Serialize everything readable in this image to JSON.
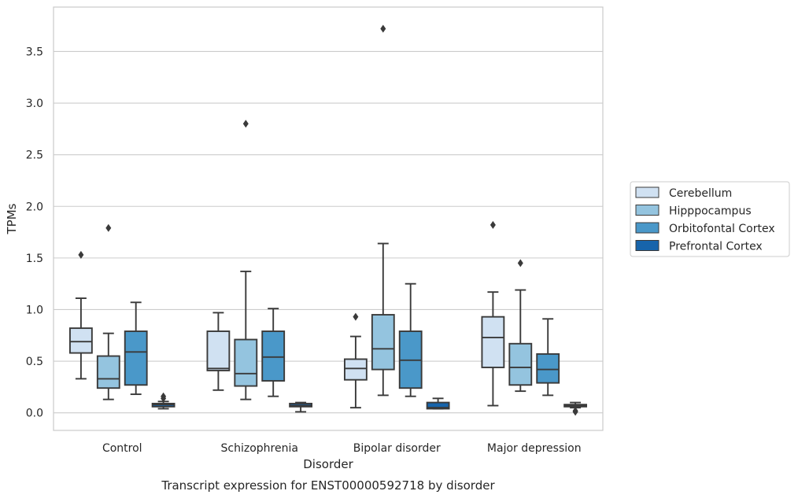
{
  "colors": {
    "Cerebellum": "#d0e1f2",
    "Hipppocampus": "#94c4df",
    "Orbitofontal Cortex": "#4a98c9",
    "Prefrontal Cortex": "#1764ab",
    "edge": "#3a3a3a",
    "grid": "#cccccc",
    "frame": "#cccccc"
  },
  "chart_data": {
    "type": "boxplot",
    "title": "",
    "caption": "Transcript expression for ENST00000592718 by disorder",
    "xlabel": "Disorder",
    "ylabel": "TPMs",
    "ylim": [
      -0.17,
      3.93
    ],
    "yticks": [
      "0.0",
      "0.5",
      "1.0",
      "1.5",
      "2.0",
      "2.5",
      "3.0",
      "3.5"
    ],
    "grid": true,
    "legend_placement": "center-right-outside",
    "categories": [
      "Control",
      "Schizophrenia",
      "Bipolar disorder",
      "Major depression"
    ],
    "series": [
      {
        "name": "Cerebellum",
        "boxes": [
          {
            "whislo": 0.33,
            "q1": 0.58,
            "med": 0.69,
            "q3": 0.82,
            "whishi": 1.11,
            "fliers": [
              1.53
            ]
          },
          {
            "whislo": 0.22,
            "q1": 0.41,
            "med": 0.43,
            "q3": 0.79,
            "whishi": 0.97,
            "fliers": []
          },
          {
            "whislo": 0.05,
            "q1": 0.32,
            "med": 0.43,
            "q3": 0.52,
            "whishi": 0.74,
            "fliers": [
              0.93
            ]
          },
          {
            "whislo": 0.07,
            "q1": 0.44,
            "med": 0.73,
            "q3": 0.93,
            "whishi": 1.17,
            "fliers": [
              1.82
            ]
          }
        ]
      },
      {
        "name": "Hipppocampus",
        "boxes": [
          {
            "whislo": 0.13,
            "q1": 0.24,
            "med": 0.33,
            "q3": 0.55,
            "whishi": 0.77,
            "fliers": [
              1.79
            ]
          },
          {
            "whislo": 0.13,
            "q1": 0.26,
            "med": 0.38,
            "q3": 0.71,
            "whishi": 1.37,
            "fliers": [
              2.8
            ]
          },
          {
            "whislo": 0.17,
            "q1": 0.42,
            "med": 0.62,
            "q3": 0.95,
            "whishi": 1.64,
            "fliers": [
              3.72
            ]
          },
          {
            "whislo": 0.21,
            "q1": 0.27,
            "med": 0.44,
            "q3": 0.67,
            "whishi": 1.19,
            "fliers": [
              1.45
            ]
          }
        ]
      },
      {
        "name": "Orbitofontal Cortex",
        "boxes": [
          {
            "whislo": 0.18,
            "q1": 0.27,
            "med": 0.59,
            "q3": 0.79,
            "whishi": 1.07,
            "fliers": []
          },
          {
            "whislo": 0.16,
            "q1": 0.31,
            "med": 0.54,
            "q3": 0.79,
            "whishi": 1.01,
            "fliers": []
          },
          {
            "whislo": 0.16,
            "q1": 0.24,
            "med": 0.51,
            "q3": 0.79,
            "whishi": 1.25,
            "fliers": []
          },
          {
            "whislo": 0.17,
            "q1": 0.29,
            "med": 0.42,
            "q3": 0.57,
            "whishi": 0.91,
            "fliers": []
          }
        ]
      },
      {
        "name": "Prefrontal Cortex",
        "boxes": [
          {
            "whislo": 0.04,
            "q1": 0.06,
            "med": 0.08,
            "q3": 0.09,
            "whishi": 0.11,
            "fliers": [
              0.16,
              0.14
            ]
          },
          {
            "whislo": 0.01,
            "q1": 0.06,
            "med": 0.07,
            "q3": 0.09,
            "whishi": 0.1,
            "fliers": []
          },
          {
            "whislo": 0.04,
            "q1": 0.04,
            "med": 0.05,
            "q3": 0.1,
            "whishi": 0.14,
            "fliers": []
          },
          {
            "whislo": 0.05,
            "q1": 0.06,
            "med": 0.07,
            "q3": 0.08,
            "whishi": 0.1,
            "fliers": [
              0.01,
              0.02
            ]
          }
        ]
      }
    ],
    "legend": [
      "Cerebellum",
      "Hipppocampus",
      "Orbitofontal Cortex",
      "Prefrontal Cortex"
    ]
  }
}
